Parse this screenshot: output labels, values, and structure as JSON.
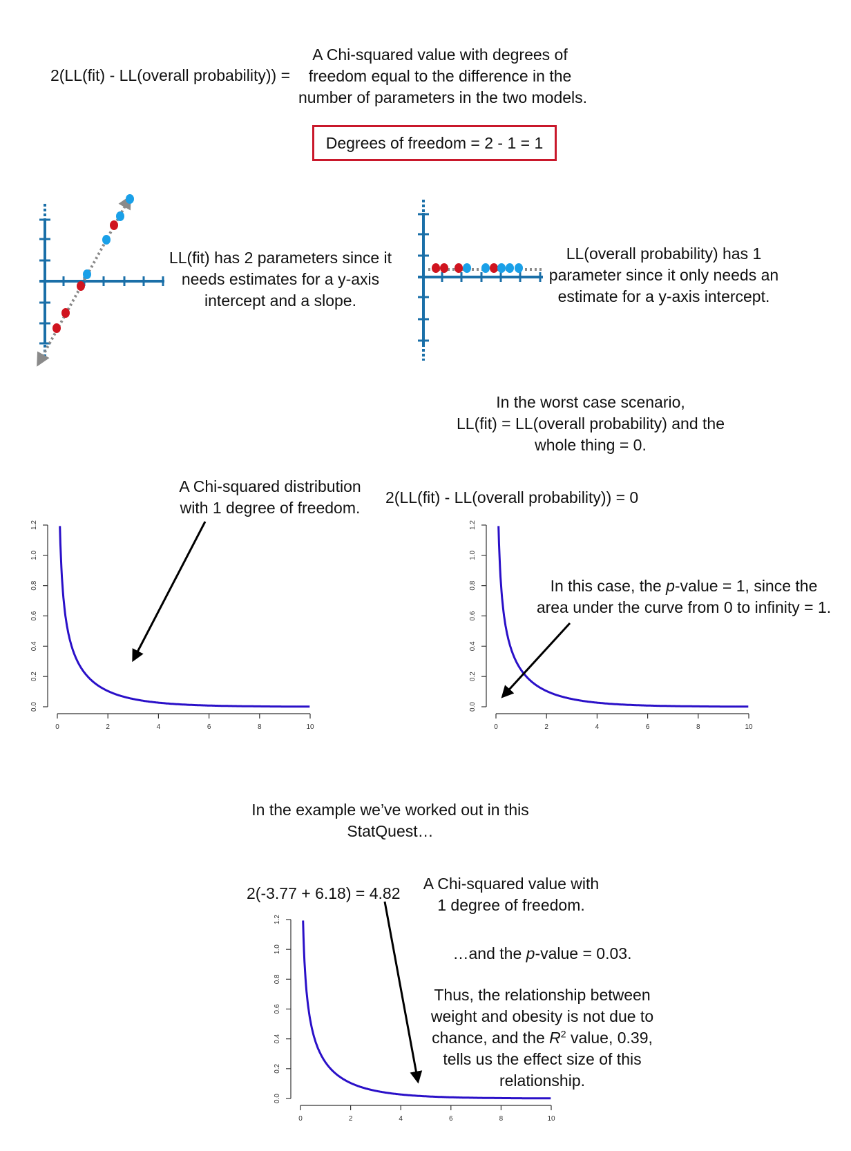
{
  "header": {
    "formula": "2(LL(fit) - LL(overall probability)) =",
    "desc_lines": [
      "A Chi-squared value with degrees of",
      "freedom equal to the difference in the",
      "number of parameters in the two models."
    ],
    "df_box": "Degrees of freedom = 2 - 1 = 1"
  },
  "fit_model": {
    "desc_lines": [
      "LL(fit) has 2 parameters since it",
      "needs estimates for a y-axis",
      "intercept and a slope."
    ],
    "colors": {
      "axis": "#1a6fa8",
      "red_point": "#d0141f",
      "blue_point": "#1aa0e8",
      "line": "#8a8a8a"
    }
  },
  "overall_model": {
    "desc_lines": [
      "LL(overall probability) has 1",
      "parameter since it only needs an",
      "estimate for a y-axis intercept."
    ]
  },
  "worst_case": {
    "desc_lines": [
      "In the worst case scenario,",
      "LL(fit) = LL(overall probability) and the",
      "whole thing = 0."
    ],
    "formula": "2(LL(fit) - LL(overall probability)) = 0"
  },
  "left_chart_note": {
    "lines": [
      "A Chi-squared distribution",
      "with 1 degree of freedom."
    ]
  },
  "right_chart_note": {
    "line1_pre": "In this case, the ",
    "line1_em": "p",
    "line1_post": "-value = 1, since the",
    "line2": "area under the curve from 0 to infinity = 1."
  },
  "example": {
    "intro_lines": [
      "In the example we’ve worked out in this",
      "StatQuest…"
    ],
    "formula": "2(-3.77 + 6.18) = 4.82",
    "value_desc_lines": [
      "A Chi-squared value with",
      "1 degree of freedom."
    ],
    "pvalue_pre": "…and the ",
    "pvalue_em": "p",
    "pvalue_post": "-value = 0.03.",
    "thus_lines": [
      "Thus, the relationship between",
      "weight and obesity is not due to"
    ],
    "thus_line3_pre": "chance, and the ",
    "thus_line3_em": "R",
    "thus_line3_sup": "2",
    "thus_line3_post": " value, 0.39,",
    "thus_lines_end": [
      "tells us the effect size of this",
      "relationship."
    ]
  },
  "chart_data": [
    {
      "type": "line",
      "function": "chi-squared density, 1 degree of freedom",
      "xlim": [
        0,
        10
      ],
      "ylim": [
        0,
        1.2
      ],
      "xticks": [
        0,
        2,
        4,
        6,
        8,
        10
      ],
      "yticks": [
        "0.0",
        "0.2",
        "0.4",
        "0.6",
        "0.8",
        "1.0",
        "1.2"
      ],
      "color": "#2a10c8",
      "series": [
        {
          "x": [
            0.16,
            0.25,
            0.5,
            0.75,
            1,
            1.5,
            2,
            3,
            4,
            5,
            6,
            8,
            10
          ],
          "values": [
            0.91,
            0.7,
            0.44,
            0.32,
            0.24,
            0.15,
            0.1,
            0.05,
            0.03,
            0.01,
            0.01,
            0.0,
            0.0
          ]
        }
      ]
    },
    {
      "type": "line",
      "function": "chi-squared density, 1 degree of freedom",
      "xlim": [
        0,
        10
      ],
      "ylim": [
        0,
        1.2
      ],
      "xticks": [
        0,
        2,
        4,
        6,
        8,
        10
      ],
      "yticks": [
        "0.0",
        "0.2",
        "0.4",
        "0.6",
        "0.8",
        "1.0",
        "1.2"
      ],
      "color": "#2a10c8",
      "series": [
        {
          "x": [
            0.16,
            0.25,
            0.5,
            0.75,
            1,
            1.5,
            2,
            3,
            4,
            5,
            6,
            8,
            10
          ],
          "values": [
            0.91,
            0.7,
            0.44,
            0.32,
            0.24,
            0.15,
            0.1,
            0.05,
            0.03,
            0.01,
            0.01,
            0.0,
            0.0
          ]
        }
      ]
    },
    {
      "type": "line",
      "function": "chi-squared density, 1 degree of freedom",
      "xlim": [
        0,
        10
      ],
      "ylim": [
        0,
        1.2
      ],
      "xticks": [
        0,
        2,
        4,
        6,
        8,
        10
      ],
      "yticks": [
        "0.0",
        "0.2",
        "0.4",
        "0.6",
        "0.8",
        "1.0",
        "1.2"
      ],
      "color": "#2a10c8",
      "series": [
        {
          "x": [
            0.16,
            0.25,
            0.5,
            0.75,
            1,
            1.5,
            2,
            3,
            4,
            5,
            6,
            8,
            10
          ],
          "values": [
            0.91,
            0.7,
            0.44,
            0.32,
            0.24,
            0.15,
            0.1,
            0.05,
            0.03,
            0.01,
            0.01,
            0.0,
            0.0
          ]
        }
      ]
    }
  ]
}
